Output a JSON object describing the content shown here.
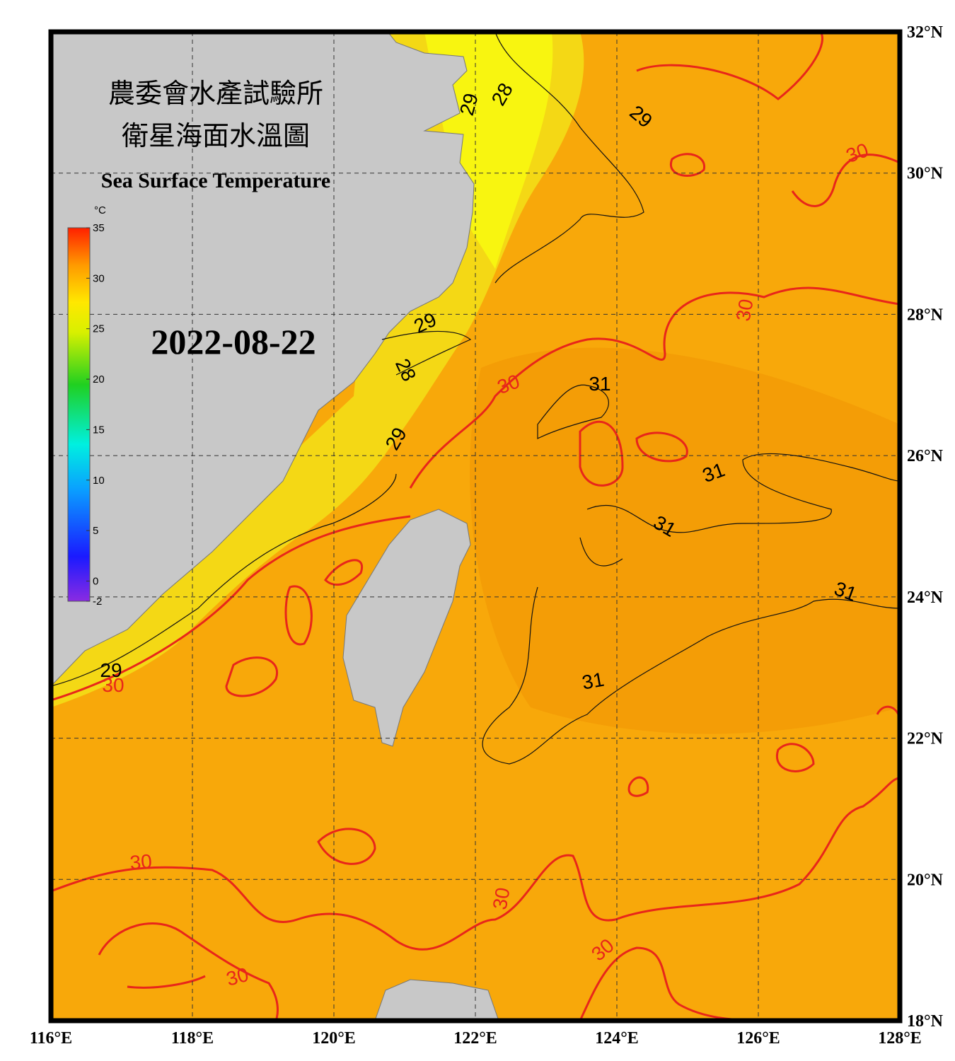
{
  "map": {
    "title_lines": [
      "農委會水產試驗所",
      "衛星海面水溫圖"
    ],
    "subtitle": "Sea Surface Temperature",
    "date": "2022-08-22",
    "xlim": [
      116,
      128
    ],
    "ylim": [
      18,
      32
    ],
    "xticks": [
      {
        "value": 116,
        "label": "116°E"
      },
      {
        "value": 118,
        "label": "118°E"
      },
      {
        "value": 120,
        "label": "120°E"
      },
      {
        "value": 122,
        "label": "122°E"
      },
      {
        "value": 124,
        "label": "124°E"
      },
      {
        "value": 126,
        "label": "126°E"
      },
      {
        "value": 128,
        "label": "128°E"
      }
    ],
    "yticks": [
      {
        "value": 18,
        "label": "18°N"
      },
      {
        "value": 20,
        "label": "20°N"
      },
      {
        "value": 22,
        "label": "22°N"
      },
      {
        "value": 24,
        "label": "24°N"
      },
      {
        "value": 26,
        "label": "26°N"
      },
      {
        "value": 28,
        "label": "28°N"
      },
      {
        "value": 30,
        "label": "30°N"
      },
      {
        "value": 32,
        "label": "32°N"
      }
    ],
    "grid": true,
    "colorbar": {
      "unit": "°C",
      "lim": [
        -2,
        35
      ],
      "ticks": [
        35,
        30,
        25,
        20,
        15,
        10,
        5,
        0,
        -2
      ]
    },
    "contour_labels": [
      "29",
      "28",
      "29",
      "30",
      "29",
      "28",
      "29",
      "30",
      "31",
      "31",
      "31",
      "31",
      "31",
      "29",
      "30",
      "30",
      "30",
      "30",
      "30",
      "30"
    ]
  }
}
